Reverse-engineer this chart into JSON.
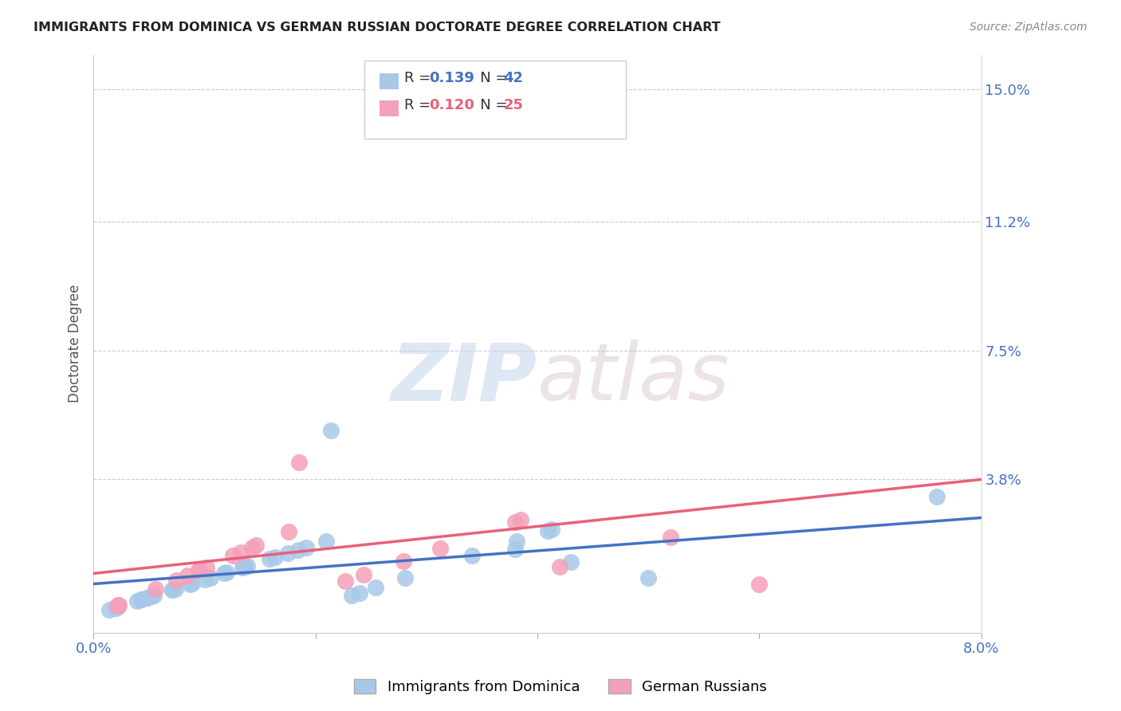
{
  "title": "IMMIGRANTS FROM DOMINICA VS GERMAN RUSSIAN DOCTORATE DEGREE CORRELATION CHART",
  "source": "Source: ZipAtlas.com",
  "ylabel": "Doctorate Degree",
  "series1_label": "Immigrants from Dominica",
  "series2_label": "German Russians",
  "series1_R": 0.139,
  "series1_N": 42,
  "series2_R": 0.12,
  "series2_N": 25,
  "series1_color": "#a8c8e8",
  "series2_color": "#f4a0b8",
  "series1_line_color": "#4472c4",
  "series2_line_color": "#e8607a",
  "xmin": 0.0,
  "xmax": 0.08,
  "ymin": -0.006,
  "ymax": 0.16,
  "ytick_pos": [
    0.038,
    0.075,
    0.112,
    0.15
  ],
  "ytick_labels": [
    "3.8%",
    "7.5%",
    "11.2%",
    "15.0%"
  ],
  "xtick_pos": [
    0.0,
    0.02,
    0.04,
    0.06,
    0.08
  ],
  "xtick_labels": [
    "0.0%",
    "",
    "",
    "",
    "8.0%"
  ],
  "watermark_zip": "ZIP",
  "watermark_atlas": "atlas",
  "background_color": "#ffffff",
  "trend1_x0": 0.0,
  "trend1_x1": 0.08,
  "trend1_y0": 0.008,
  "trend1_y1": 0.027,
  "trend2_x0": 0.0,
  "trend2_x1": 0.08,
  "trend2_y0": 0.011,
  "trend2_y1": 0.038
}
